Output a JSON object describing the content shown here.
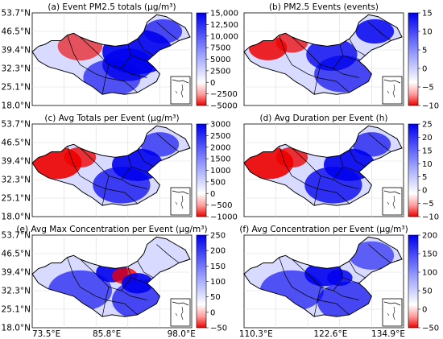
{
  "panels": [
    {
      "title": "(a) Event PM2.5 totals (μg/m³)",
      "colorbar": {
        "min": -5000,
        "max": 15000,
        "ticks": [
          "15,000",
          "12,500",
          "10,000",
          "7500",
          "5000",
          "2500",
          "0",
          "−2500",
          "−5000"
        ]
      },
      "field": "totals"
    },
    {
      "title": "(b) PM2.5 Events (events)",
      "colorbar": {
        "min": -10,
        "max": 15,
        "ticks": [
          "15",
          "10",
          "5",
          "0",
          "−5",
          "−10"
        ]
      },
      "field": "events"
    },
    {
      "title": "(c) Avg Totals per Event (μg/m³)",
      "colorbar": {
        "min": -1000,
        "max": 3000,
        "ticks": [
          "3000",
          "2500",
          "2000",
          "1500",
          "1000",
          "500",
          "0",
          "−500",
          "−1000"
        ]
      },
      "field": "avgtotals"
    },
    {
      "title": "(d) Avg Duration per Event (h)",
      "colorbar": {
        "min": -10,
        "max": 25,
        "ticks": [
          "25",
          "20",
          "15",
          "10",
          "5",
          "0",
          "−5",
          "−10"
        ]
      },
      "field": "duration"
    },
    {
      "title": "(e) Avg Max Concentration per Event (μg/m³)",
      "colorbar": {
        "min": -50,
        "max": 250,
        "ticks": [
          "250",
          "200",
          "150",
          "100",
          "50",
          "0",
          "−50"
        ]
      },
      "field": "maxconc"
    },
    {
      "title": "(f) Avg Concentration per Event (μg/m³)",
      "colorbar": {
        "min": -50,
        "max": 200,
        "ticks": [
          "200",
          "150",
          "100",
          "50",
          "0",
          "−50"
        ]
      },
      "field": "avgconc"
    }
  ],
  "lat_labels": [
    "53.7°N",
    "46.5°N",
    "39.4°N",
    "32.3°N",
    "25.1°N",
    "18.0°N"
  ],
  "lon_labels": [
    "73.5°E",
    "85.8°E",
    "98.0°E",
    "110.3°E",
    "122.6°E",
    "134.9°E"
  ],
  "colors": {
    "positive": "#0000ee",
    "negative": "#ee0000",
    "neutral": "#ffffff",
    "border": "#000000",
    "grid": "#d9d9d9"
  }
}
